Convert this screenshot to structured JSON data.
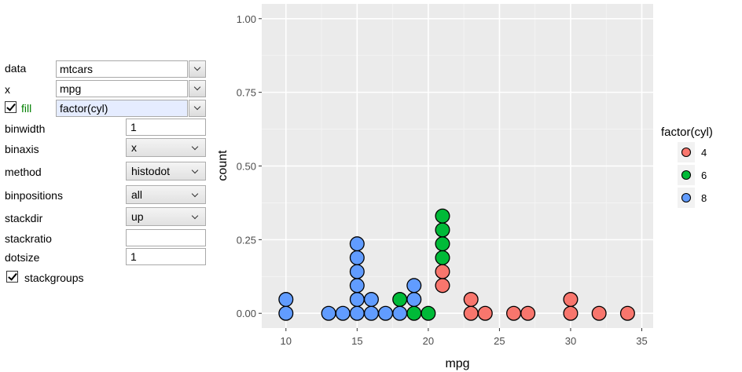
{
  "controls": {
    "data": {
      "label": "data",
      "value": "mtcars"
    },
    "x": {
      "label": "x",
      "value": "mpg"
    },
    "fill": {
      "label": "fill",
      "value": "factor(cyl)",
      "checked": true,
      "label_color": "#008000"
    },
    "binwidth": {
      "label": "binwidth",
      "value": "1"
    },
    "binaxis": {
      "label": "binaxis",
      "value": "x"
    },
    "method": {
      "label": "method",
      "value": "histodot"
    },
    "binpositions": {
      "label": "binpositions",
      "value": "all"
    },
    "stackdir": {
      "label": "stackdir",
      "value": "up"
    },
    "stackratio": {
      "label": "stackratio",
      "value": ""
    },
    "dotsize": {
      "label": "dotsize",
      "value": "1"
    },
    "stackgroups": {
      "label": "stackgroups",
      "checked": true
    }
  },
  "chart_data": {
    "type": "scatter",
    "subtype": "dotplot",
    "xlabel": "mpg",
    "ylabel": "count",
    "xlim": [
      8.3,
      35.8
    ],
    "ylim": [
      -0.05,
      1.05
    ],
    "xticks": [
      10,
      15,
      20,
      25,
      30,
      35
    ],
    "yticks": [
      0.0,
      0.25,
      0.5,
      0.75,
      1.0
    ],
    "xtick_labels": [
      "10",
      "15",
      "20",
      "25",
      "30",
      "35"
    ],
    "ytick_labels": [
      "0.00",
      "0.25",
      "0.50",
      "0.75",
      "1.00"
    ],
    "grid": true,
    "legend": {
      "title": "factor(cyl)",
      "placement": "right",
      "entries": [
        "4",
        "6",
        "8"
      ]
    },
    "series": [
      {
        "name": "4",
        "color": "#F8766D",
        "points": [
          {
            "x": 21,
            "stack": [
              3,
              4
            ]
          },
          {
            "x": 23,
            "stack": [
              1,
              2
            ]
          },
          {
            "x": 24,
            "stack": [
              1
            ]
          },
          {
            "x": 26,
            "stack": [
              1
            ]
          },
          {
            "x": 27,
            "stack": [
              1
            ]
          },
          {
            "x": 30,
            "stack": [
              1,
              2
            ]
          },
          {
            "x": 32,
            "stack": [
              1
            ]
          },
          {
            "x": 34,
            "stack": [
              1
            ]
          }
        ]
      },
      {
        "name": "6",
        "color": "#00BA38",
        "points": [
          {
            "x": 18,
            "stack": [
              2
            ]
          },
          {
            "x": 19,
            "stack": [
              1
            ]
          },
          {
            "x": 20,
            "stack": [
              1
            ]
          },
          {
            "x": 21,
            "stack": [
              5,
              6,
              7,
              8
            ]
          }
        ]
      },
      {
        "name": "8",
        "color": "#619CFF",
        "points": [
          {
            "x": 10,
            "stack": [
              1,
              2
            ]
          },
          {
            "x": 13,
            "stack": [
              1
            ]
          },
          {
            "x": 14,
            "stack": [
              1
            ]
          },
          {
            "x": 15,
            "stack": [
              1,
              2,
              3,
              4,
              5,
              6
            ]
          },
          {
            "x": 16,
            "stack": [
              1,
              2
            ]
          },
          {
            "x": 17,
            "stack": [
              1
            ]
          },
          {
            "x": 18,
            "stack": [
              1
            ]
          },
          {
            "x": 19,
            "stack": [
              2,
              3
            ]
          }
        ]
      }
    ]
  }
}
